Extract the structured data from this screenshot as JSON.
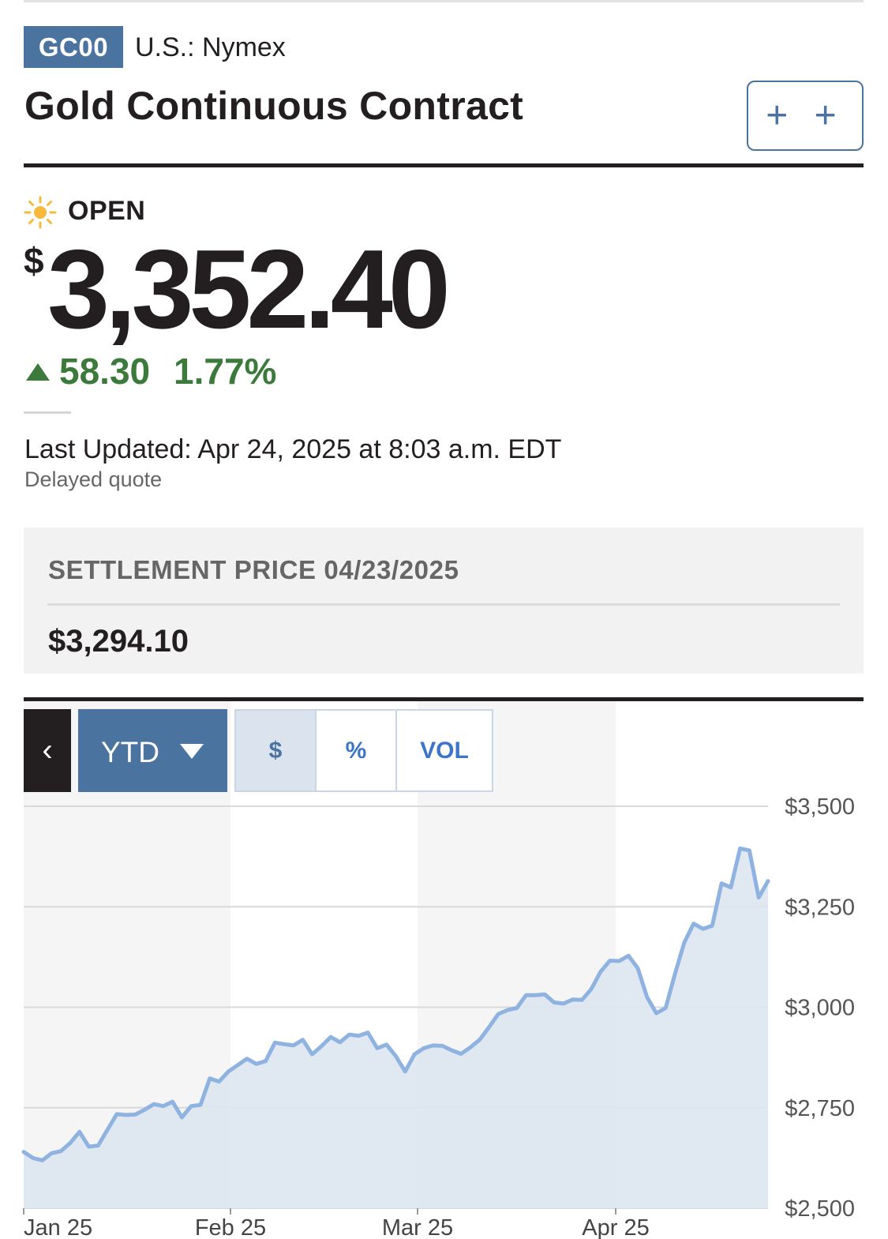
{
  "header": {
    "ticker": "GC00",
    "exchange": "U.S.: Nymex",
    "title": "Gold Continuous Contract",
    "watchlist_button": "+ +"
  },
  "quote": {
    "market_status": "OPEN",
    "status_icon": "sun-icon",
    "currency_symbol": "$",
    "price": "3,352.40",
    "change": "58.30",
    "change_percent": "1.77%",
    "change_direction": "up",
    "last_updated": "Last Updated: Apr 24, 2025 at 8:03 a.m. EDT",
    "delayed_note": "Delayed quote"
  },
  "settlement": {
    "label": "SETTLEMENT PRICE 04/23/2025",
    "value": "$3,294.10"
  },
  "chart_controls": {
    "back_icon": "chevron-left-icon",
    "range": "YTD",
    "range_icon": "caret-down-icon",
    "modes": [
      "$",
      "%",
      "VOL"
    ],
    "active_mode": "$"
  },
  "colors": {
    "accent": "#4a73a0",
    "positive": "#3c7a3c",
    "line": "#8fb3e0",
    "area": "#dde6ef"
  },
  "chart_data": {
    "type": "area",
    "title": "",
    "xlabel": "",
    "ylabel": "",
    "x_ticks": [
      "Jan 25",
      "Feb 25",
      "Mar 25",
      "Apr 25"
    ],
    "y_ticks": [
      "$2,500",
      "$2,750",
      "$3,000",
      "$3,250",
      "$3,500"
    ],
    "ylim": [
      2500,
      3500
    ],
    "grid": true,
    "y_axis_side": "right",
    "series": [
      {
        "values": [
          2640,
          2625,
          2619,
          2637,
          2642,
          2662,
          2690,
          2653,
          2656,
          2695,
          2734,
          2732,
          2733,
          2745,
          2759,
          2754,
          2765,
          2726,
          2754,
          2757,
          2823,
          2815,
          2840,
          2856,
          2872,
          2859,
          2866,
          2912,
          2908,
          2905,
          2919,
          2883,
          2903,
          2926,
          2913,
          2932,
          2929,
          2937,
          2898,
          2907,
          2878,
          2840,
          2883,
          2898,
          2905,
          2904,
          2893,
          2884,
          2900,
          2919,
          2950,
          2983,
          2993,
          2998,
          3030,
          3030,
          3032,
          3012,
          3009,
          3019,
          3018,
          3045,
          3088,
          3116,
          3115,
          3128,
          3097,
          3025,
          2985,
          2998,
          3083,
          3161,
          3208,
          3195,
          3203,
          3308,
          3298,
          3395,
          3390,
          3273,
          3314
        ]
      }
    ]
  }
}
